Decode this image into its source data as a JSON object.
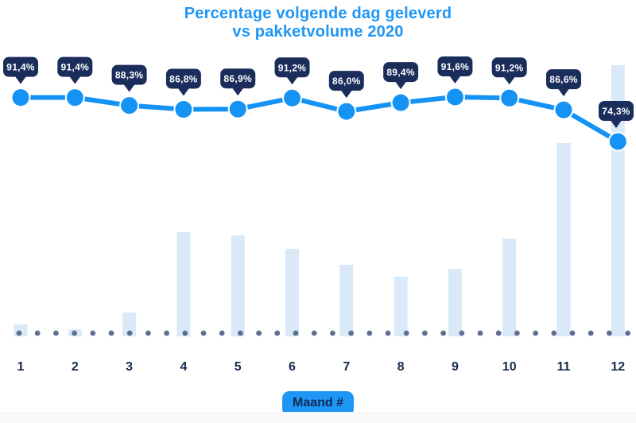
{
  "page": {
    "background": "#ffffff",
    "footer_strip_color": "#fafafa"
  },
  "chart_data": {
    "type": "line+bar",
    "title_line1": "Percentage volgende dag geleverd",
    "title_line2": "vs pakketvolume 2020",
    "title_color": "#1e96f5",
    "categories": [
      "1",
      "2",
      "3",
      "4",
      "5",
      "6",
      "7",
      "8",
      "9",
      "10",
      "11",
      "12"
    ],
    "xlabel": "Maand #",
    "series": [
      {
        "name": "Percentage volgende dag geleverd",
        "type": "line",
        "unit": "%",
        "color": "#1593f4",
        "values": [
          91.4,
          91.4,
          88.3,
          86.8,
          86.9,
          91.2,
          86.0,
          89.4,
          91.6,
          91.2,
          86.6,
          74.3
        ],
        "labels": [
          "91,4%",
          "91,4%",
          "88,3%",
          "86,8%",
          "86,9%",
          "91,2%",
          "86,0%",
          "89,4%",
          "91,6%",
          "91,2%",
          "86,6%",
          "74,3%"
        ]
      },
      {
        "name": "Pakketvolume (relatieve index, max = 100)",
        "type": "bar",
        "color": "#d9e9f8",
        "values": [
          4.4,
          2.6,
          8.8,
          38.4,
          37.2,
          32.3,
          26.4,
          22.0,
          24.9,
          36.1,
          71.3,
          100
        ]
      }
    ],
    "ylim_pct": [
      0,
      100
    ],
    "grid": false,
    "legend": "none",
    "label_bubble_color": "#1a2d5b",
    "label_text_color": "#ffffff",
    "axis_label_color": "#16294f",
    "dotted_line_color": "#5d6f93",
    "xlabel_pill_bg": "#1e96f5",
    "xlabel_pill_color": "#0f2a56"
  }
}
